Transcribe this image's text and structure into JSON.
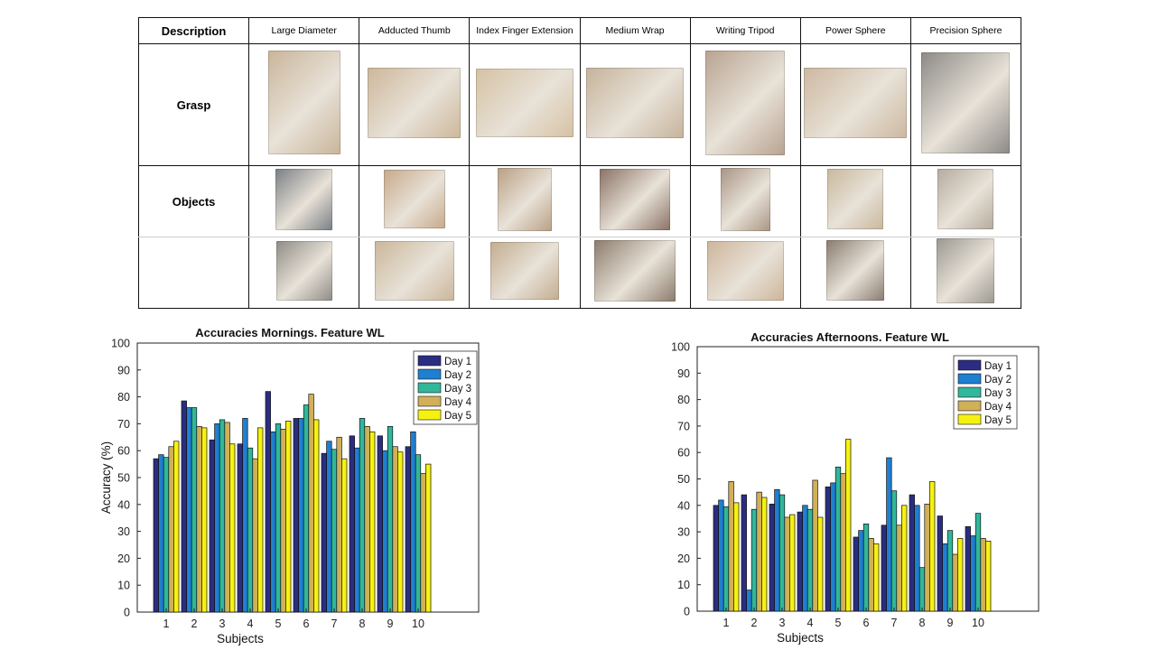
{
  "table": {
    "header": [
      "Description",
      "Large Diameter",
      "Adducted Thumb",
      "Index Finger Extension",
      "Medium Wrap",
      "Writing Tripod",
      "Power Sphere",
      "Precision Sphere"
    ],
    "rows": {
      "grasp": "Grasp",
      "objects": "Objects"
    },
    "photo_colors": {
      "grasp": [
        "#c9b59a",
        "#cdb79a",
        "#d6c2a4",
        "#c6b39b",
        "#b8a391",
        "#cdb8a0",
        "#8d8a86"
      ],
      "object1": [
        "#7a7f84",
        "#c7a98a",
        "#b9a085",
        "#8a7265",
        "#a89584",
        "#c9b89c",
        "#b5ab9d"
      ],
      "object2": [
        "#8f8c86",
        "#cbb69a",
        "#c3ad90",
        "#8c7c6c",
        "#cdb59a",
        "#8a7c70",
        "#9c9890"
      ]
    }
  },
  "chart_data": [
    {
      "type": "bar",
      "title": "Accuracies Mornings. Feature WL",
      "xlabel": "Subjects",
      "ylabel": "Accuracy (%)",
      "ylim": [
        0,
        100
      ],
      "yticks": [
        0,
        10,
        20,
        30,
        40,
        50,
        60,
        70,
        80,
        90,
        100
      ],
      "categories": [
        "1",
        "2",
        "3",
        "4",
        "5",
        "6",
        "7",
        "8",
        "9",
        "10"
      ],
      "legend_position": "top-right",
      "series": [
        {
          "name": "Day 1",
          "color": "#2b2d83",
          "values": [
            57,
            78.5,
            64,
            62.5,
            82,
            72,
            59,
            65.5,
            65.5,
            61.5
          ]
        },
        {
          "name": "Day 2",
          "color": "#1f7fd1",
          "values": [
            58.5,
            76,
            70,
            72,
            67,
            72,
            63.5,
            61,
            60,
            67
          ]
        },
        {
          "name": "Day 3",
          "color": "#30b79c",
          "values": [
            57.5,
            76,
            71.5,
            61,
            70,
            77,
            60.5,
            72,
            69,
            58.5
          ]
        },
        {
          "name": "Day 4",
          "color": "#d2b058",
          "values": [
            61.5,
            69,
            70.5,
            57,
            68,
            81,
            65,
            69,
            61.5,
            51.5
          ]
        },
        {
          "name": "Day 5",
          "color": "#f6f20f",
          "values": [
            63.5,
            68.5,
            62.5,
            68.5,
            71,
            71.5,
            57,
            67,
            59.5,
            55
          ]
        }
      ]
    },
    {
      "type": "bar",
      "title": "Accuracies Afternoons. Feature WL",
      "xlabel": "Subjects",
      "ylabel": "",
      "ylim": [
        0,
        100
      ],
      "yticks": [
        0,
        10,
        20,
        30,
        40,
        50,
        60,
        70,
        80,
        90,
        100
      ],
      "categories": [
        "1",
        "2",
        "3",
        "4",
        "5",
        "6",
        "7",
        "8",
        "9",
        "10"
      ],
      "legend_position": "top-right",
      "series": [
        {
          "name": "Day 1",
          "color": "#2b2d83",
          "values": [
            40,
            44,
            40.5,
            37.5,
            47,
            28,
            32.5,
            44,
            36,
            32
          ]
        },
        {
          "name": "Day 2",
          "color": "#1f7fd1",
          "values": [
            42,
            8,
            46,
            40,
            48.5,
            30.5,
            58,
            40,
            25.5,
            28.5
          ]
        },
        {
          "name": "Day 3",
          "color": "#30b79c",
          "values": [
            39.5,
            38.5,
            44,
            38.5,
            54.5,
            33,
            45.5,
            16.5,
            30.5,
            37
          ]
        },
        {
          "name": "Day 4",
          "color": "#d2b058",
          "values": [
            49,
            45,
            35.5,
            49.5,
            52,
            27.5,
            32.5,
            40.5,
            21.5,
            27.5
          ]
        },
        {
          "name": "Day 5",
          "color": "#f6f20f",
          "values": [
            41,
            43,
            36.5,
            35.5,
            65,
            25.5,
            40,
            49,
            27.5,
            26.5
          ]
        }
      ]
    }
  ]
}
